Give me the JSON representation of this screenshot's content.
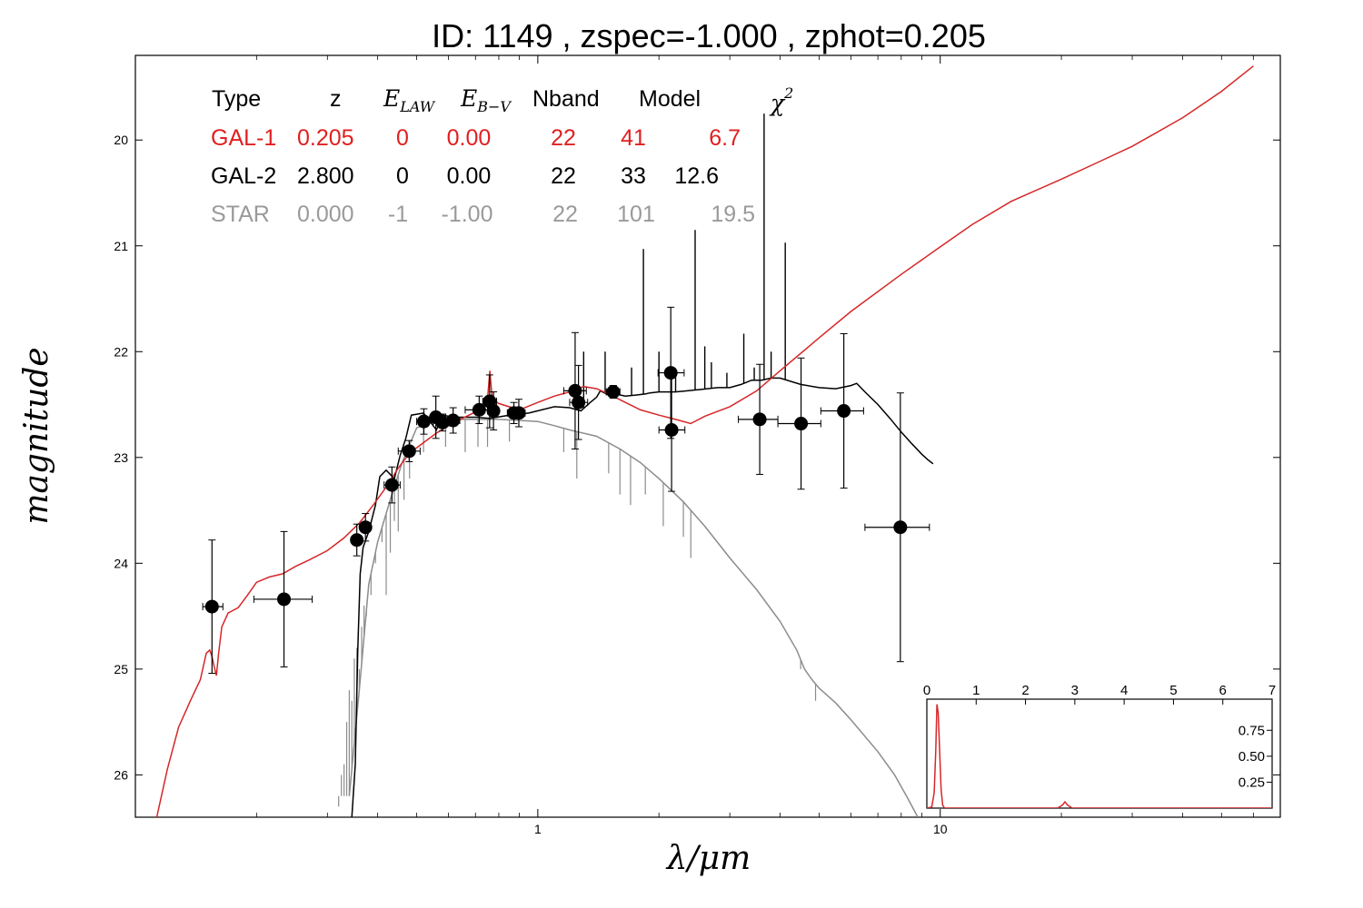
{
  "title": "ID:  1149  , zspec=-1.000 , zphot=0.205",
  "chart_data": {
    "type": "scatter",
    "xlabel": "λ/μm",
    "ylabel": "magnitude",
    "x_scale": "log",
    "xlim": [
      0.1,
      70
    ],
    "ylim": [
      26.4,
      19.2
    ],
    "x_ticks": [
      1,
      10
    ],
    "x_tick_labels": [
      "1",
      "10"
    ],
    "y_ticks": [
      20,
      21,
      22,
      23,
      24,
      25,
      26
    ],
    "y_tick_labels": [
      "20",
      "21",
      "22",
      "23",
      "24",
      "25",
      "26"
    ],
    "colors": {
      "gal1": "#d62728",
      "gal2": "#000000",
      "star": "#8c8c8c"
    },
    "fit_table": {
      "headers": {
        "type": "Type",
        "z": "z",
        "elaw_main": "E",
        "elaw_sub": "LAW",
        "ebv_main": "E",
        "ebv_sub": "B−V",
        "nband": "Nband",
        "model": "Model",
        "chi_main": "χ",
        "chi_sup": "2"
      },
      "rows": [
        {
          "type": "GAL-1",
          "z": "0.205",
          "elaw": "0",
          "ebv": "0.00",
          "nband": "22",
          "model": "41",
          "chi2": "6.7",
          "color": "#e02020"
        },
        {
          "type": "GAL-2",
          "z": "2.800",
          "elaw": "0",
          "ebv": "0.00",
          "nband": "22",
          "model": "33",
          "chi2": "12.6",
          "color": "#000000"
        },
        {
          "type": "STAR",
          "z": "0.000",
          "elaw": "-1",
          "ebv": "-1.00",
          "nband": "22",
          "model": "101",
          "chi2": "19.5",
          "color": "#9a9a9a"
        }
      ]
    },
    "photometry": [
      {
        "x": 0.155,
        "y": 24.41,
        "xerr": [
          0.147,
          0.165
        ],
        "yerr": 0.63
      },
      {
        "x": 0.234,
        "y": 24.34,
        "xerr": [
          0.197,
          0.275
        ],
        "yerr": 0.64
      },
      {
        "x": 0.355,
        "y": 23.78,
        "xerr": [
          0.345,
          0.365
        ],
        "yerr": 0.15
      },
      {
        "x": 0.373,
        "y": 23.66,
        "xerr": [
          0.363,
          0.383
        ],
        "yerr": 0.13
      },
      {
        "x": 0.434,
        "y": 23.26,
        "xerr": [
          0.415,
          0.455
        ],
        "yerr": 0.17
      },
      {
        "x": 0.479,
        "y": 22.94,
        "xerr": [
          0.45,
          0.51
        ],
        "yerr": 0.1
      },
      {
        "x": 0.521,
        "y": 22.66,
        "xerr": [
          0.5,
          0.55
        ],
        "yerr": 0.12
      },
      {
        "x": 0.558,
        "y": 22.62,
        "xerr": [
          0.52,
          0.59
        ],
        "yerr": 0.2
      },
      {
        "x": 0.58,
        "y": 22.67,
        "xerr": [
          0.56,
          0.6
        ],
        "yerr": 0.08
      },
      {
        "x": 0.616,
        "y": 22.65,
        "xerr": [
          0.59,
          0.64
        ],
        "yerr": 0.12
      },
      {
        "x": 0.715,
        "y": 22.55,
        "xerr": [
          0.66,
          0.77
        ],
        "yerr": 0.13
      },
      {
        "x": 0.759,
        "y": 22.47,
        "xerr": [
          0.73,
          0.79
        ],
        "yerr": 0.25
      },
      {
        "x": 0.776,
        "y": 22.56,
        "xerr": [
          0.75,
          0.8
        ],
        "yerr": 0.18
      },
      {
        "x": 0.872,
        "y": 22.58,
        "xerr": [
          0.84,
          0.9
        ],
        "yerr": 0.1
      },
      {
        "x": 0.897,
        "y": 22.58,
        "xerr": [
          0.87,
          0.93
        ],
        "yerr": 0.13
      },
      {
        "x": 1.238,
        "y": 22.37,
        "xerr": [
          1.16,
          1.32
        ],
        "yerr": 0.55
      },
      {
        "x": 1.262,
        "y": 22.48,
        "xerr": [
          1.2,
          1.33
        ],
        "yerr": 0.35
      },
      {
        "x": 1.54,
        "y": 22.38,
        "xerr": [
          1.48,
          1.6
        ],
        "yerr": 0.06
      },
      {
        "x": 2.14,
        "y": 22.2,
        "xerr": [
          1.99,
          2.31
        ],
        "yerr": 0.62
      },
      {
        "x": 2.15,
        "y": 22.74,
        "xerr": [
          2.0,
          2.32
        ],
        "yerr": 0.58
      },
      {
        "x": 3.56,
        "y": 22.64,
        "xerr": [
          3.15,
          3.95
        ],
        "yerr": 0.52
      },
      {
        "x": 4.51,
        "y": 22.68,
        "xerr": [
          3.95,
          5.05
        ],
        "yerr": 0.62
      },
      {
        "x": 5.76,
        "y": 22.56,
        "xerr": [
          5.05,
          6.45
        ],
        "yerr": 0.73
      },
      {
        "x": 7.96,
        "y": 23.66,
        "xerr": [
          6.5,
          9.4
        ],
        "yerr": 1.27
      }
    ],
    "gal1_curve": [
      [
        0.113,
        26.4
      ],
      [
        0.12,
        25.95
      ],
      [
        0.128,
        25.55
      ],
      [
        0.137,
        25.3
      ],
      [
        0.145,
        25.1
      ],
      [
        0.15,
        24.85
      ],
      [
        0.153,
        24.82
      ],
      [
        0.155,
        24.88
      ],
      [
        0.157,
        24.98
      ],
      [
        0.159,
        25.06
      ],
      [
        0.161,
        24.85
      ],
      [
        0.164,
        24.6
      ],
      [
        0.17,
        24.47
      ],
      [
        0.18,
        24.42
      ],
      [
        0.19,
        24.3
      ],
      [
        0.2,
        24.18
      ],
      [
        0.215,
        24.13
      ],
      [
        0.232,
        24.1
      ],
      [
        0.25,
        24.03
      ],
      [
        0.27,
        23.97
      ],
      [
        0.3,
        23.88
      ],
      [
        0.33,
        23.76
      ],
      [
        0.36,
        23.62
      ],
      [
        0.39,
        23.45
      ],
      [
        0.42,
        23.28
      ],
      [
        0.45,
        23.1
      ],
      [
        0.48,
        22.96
      ],
      [
        0.52,
        22.86
      ],
      [
        0.56,
        22.77
      ],
      [
        0.6,
        22.7
      ],
      [
        0.65,
        22.63
      ],
      [
        0.7,
        22.57
      ],
      [
        0.75,
        22.45
      ],
      [
        0.76,
        22.18
      ],
      [
        0.77,
        22.44
      ],
      [
        0.8,
        22.49
      ],
      [
        0.9,
        22.55
      ],
      [
        1.0,
        22.48
      ],
      [
        1.1,
        22.42
      ],
      [
        1.2,
        22.38
      ],
      [
        1.3,
        22.33
      ],
      [
        1.4,
        22.35
      ],
      [
        1.5,
        22.4
      ],
      [
        1.65,
        22.48
      ],
      [
        1.8,
        22.55
      ],
      [
        2.0,
        22.6
      ],
      [
        2.2,
        22.64
      ],
      [
        2.4,
        22.68
      ],
      [
        2.6,
        22.61
      ],
      [
        3.0,
        22.52
      ],
      [
        3.5,
        22.37
      ],
      [
        4.0,
        22.18
      ],
      [
        5.0,
        21.87
      ],
      [
        6.0,
        21.62
      ],
      [
        8.0,
        21.27
      ],
      [
        10.0,
        21.01
      ],
      [
        12.0,
        20.8
      ],
      [
        15.0,
        20.58
      ],
      [
        20.0,
        20.37
      ],
      [
        25.0,
        20.2
      ],
      [
        30.0,
        20.06
      ],
      [
        40.0,
        19.79
      ],
      [
        50.0,
        19.54
      ],
      [
        60.0,
        19.3
      ]
    ],
    "gal2_curve": [
      [
        0.345,
        26.4
      ],
      [
        0.352,
        25.9
      ],
      [
        0.357,
        24.8
      ],
      [
        0.362,
        24.1
      ],
      [
        0.368,
        23.85
      ],
      [
        0.38,
        23.7
      ],
      [
        0.395,
        23.45
      ],
      [
        0.405,
        23.18
      ],
      [
        0.42,
        23.12
      ],
      [
        0.44,
        23.2
      ],
      [
        0.455,
        22.98
      ],
      [
        0.47,
        22.82
      ],
      [
        0.485,
        22.6
      ],
      [
        0.52,
        22.58
      ],
      [
        0.56,
        22.74
      ],
      [
        0.58,
        22.6
      ],
      [
        0.62,
        22.62
      ],
      [
        0.7,
        22.62
      ],
      [
        0.76,
        22.63
      ],
      [
        0.85,
        22.6
      ],
      [
        0.95,
        22.58
      ],
      [
        1.1,
        22.52
      ],
      [
        1.2,
        22.53
      ],
      [
        1.28,
        22.56
      ],
      [
        1.35,
        22.48
      ],
      [
        1.4,
        22.43
      ],
      [
        1.43,
        22.37
      ],
      [
        1.5,
        22.41
      ],
      [
        1.56,
        22.4
      ],
      [
        1.65,
        22.42
      ],
      [
        1.75,
        22.41
      ],
      [
        1.85,
        22.4
      ],
      [
        1.9,
        22.39
      ],
      [
        2.0,
        22.38
      ],
      [
        2.2,
        22.38
      ],
      [
        2.5,
        22.36
      ],
      [
        2.8,
        22.34
      ],
      [
        3.0,
        22.34
      ],
      [
        3.2,
        22.31
      ],
      [
        3.4,
        22.27
      ],
      [
        3.6,
        22.27
      ],
      [
        3.8,
        22.25
      ],
      [
        4.0,
        22.25
      ],
      [
        4.5,
        22.31
      ],
      [
        5.0,
        22.34
      ],
      [
        5.5,
        22.35
      ],
      [
        6.0,
        22.32
      ],
      [
        6.2,
        22.3
      ],
      [
        6.5,
        22.38
      ],
      [
        7.0,
        22.5
      ],
      [
        7.5,
        22.63
      ],
      [
        8.0,
        22.76
      ],
      [
        8.5,
        22.87
      ],
      [
        9.0,
        22.97
      ],
      [
        9.3,
        23.02
      ],
      [
        9.6,
        23.06
      ]
    ],
    "gal2_emission_lines": [
      {
        "x": 1.3,
        "y": 22.0
      },
      {
        "x": 1.47,
        "y": 22.0
      },
      {
        "x": 1.71,
        "y": 22.15
      },
      {
        "x": 1.83,
        "y": 21.03
      },
      {
        "x": 2.0,
        "y": 22.0
      },
      {
        "x": 2.2,
        "y": 22.2
      },
      {
        "x": 2.46,
        "y": 20.85
      },
      {
        "x": 2.6,
        "y": 21.95
      },
      {
        "x": 2.7,
        "y": 22.1
      },
      {
        "x": 2.95,
        "y": 22.2
      },
      {
        "x": 3.25,
        "y": 21.83
      },
      {
        "x": 3.45,
        "y": 22.15
      },
      {
        "x": 3.65,
        "y": 19.75
      },
      {
        "x": 3.8,
        "y": 22.0
      },
      {
        "x": 4.12,
        "y": 20.97
      }
    ],
    "star_curve": [
      [
        0.34,
        26.2
      ],
      [
        0.36,
        25.2
      ],
      [
        0.38,
        24.2
      ],
      [
        0.4,
        23.8
      ],
      [
        0.43,
        23.4
      ],
      [
        0.46,
        23.05
      ],
      [
        0.48,
        22.88
      ],
      [
        0.5,
        22.72
      ],
      [
        0.55,
        22.66
      ],
      [
        0.6,
        22.64
      ],
      [
        0.7,
        22.64
      ],
      [
        0.8,
        22.64
      ],
      [
        0.9,
        22.65
      ],
      [
        1.0,
        22.66
      ],
      [
        1.1,
        22.7
      ],
      [
        1.2,
        22.74
      ],
      [
        1.4,
        22.8
      ],
      [
        1.6,
        22.92
      ],
      [
        1.8,
        23.05
      ],
      [
        2.0,
        23.2
      ],
      [
        2.3,
        23.42
      ],
      [
        2.6,
        23.65
      ],
      [
        3.0,
        23.95
      ],
      [
        3.5,
        24.25
      ],
      [
        4.0,
        24.55
      ],
      [
        4.4,
        24.82
      ],
      [
        4.6,
        25.0
      ],
      [
        4.8,
        25.1
      ],
      [
        5.0,
        25.18
      ],
      [
        5.5,
        25.32
      ],
      [
        6.0,
        25.48
      ],
      [
        7.0,
        25.78
      ],
      [
        7.7,
        26.0
      ],
      [
        8.3,
        26.22
      ],
      [
        8.8,
        26.4
      ]
    ],
    "star_absorption_lines": [
      {
        "x": 0.3,
        "y": 26.2
      },
      {
        "x": 0.32,
        "y": 26.3
      },
      {
        "x": 0.325,
        "y": 26.0
      },
      {
        "x": 0.33,
        "y": 25.9
      },
      {
        "x": 0.335,
        "y": 25.5
      },
      {
        "x": 0.34,
        "y": 25.2
      },
      {
        "x": 0.345,
        "y": 25.3
      },
      {
        "x": 0.35,
        "y": 24.9
      },
      {
        "x": 0.355,
        "y": 24.8
      },
      {
        "x": 0.36,
        "y": 25.0
      },
      {
        "x": 0.365,
        "y": 24.6
      },
      {
        "x": 0.37,
        "y": 24.4
      },
      {
        "x": 0.375,
        "y": 24.5
      },
      {
        "x": 0.385,
        "y": 24.3
      },
      {
        "x": 0.395,
        "y": 24.0
      },
      {
        "x": 0.41,
        "y": 23.8
      },
      {
        "x": 0.42,
        "y": 24.3
      },
      {
        "x": 0.43,
        "y": 23.9
      },
      {
        "x": 0.44,
        "y": 23.6
      },
      {
        "x": 0.45,
        "y": 23.7
      },
      {
        "x": 0.465,
        "y": 23.4
      },
      {
        "x": 0.48,
        "y": 23.2
      },
      {
        "x": 0.52,
        "y": 22.95
      },
      {
        "x": 0.59,
        "y": 22.9
      },
      {
        "x": 0.66,
        "y": 22.95
      },
      {
        "x": 0.71,
        "y": 22.9
      },
      {
        "x": 0.75,
        "y": 22.9
      },
      {
        "x": 0.85,
        "y": 22.85
      },
      {
        "x": 1.16,
        "y": 22.95
      },
      {
        "x": 1.25,
        "y": 23.2
      },
      {
        "x": 1.5,
        "y": 23.15
      },
      {
        "x": 1.6,
        "y": 23.35
      },
      {
        "x": 1.7,
        "y": 23.45
      },
      {
        "x": 1.85,
        "y": 23.35
      },
      {
        "x": 2.05,
        "y": 23.65
      },
      {
        "x": 2.3,
        "y": 23.75
      },
      {
        "x": 2.4,
        "y": 23.95
      },
      {
        "x": 4.5,
        "y": 25.0
      },
      {
        "x": 4.9,
        "y": 25.3
      }
    ],
    "inset": {
      "type": "line",
      "xlim": [
        0,
        7
      ],
      "ylim": [
        0,
        1.05
      ],
      "x_ticks": [
        0,
        1,
        2,
        3,
        4,
        5,
        6,
        7
      ],
      "x_tick_labels": [
        "0",
        "1",
        "2",
        "3",
        "4",
        "5",
        "6",
        "7"
      ],
      "y_ticks": [
        0.25,
        0.5,
        0.75
      ],
      "y_tick_labels": [
        "0.25",
        "0.50",
        "0.75"
      ],
      "pdz": [
        [
          0.0,
          0.0
        ],
        [
          0.1,
          0.01
        ],
        [
          0.15,
          0.15
        ],
        [
          0.18,
          0.55
        ],
        [
          0.205,
          1.0
        ],
        [
          0.23,
          0.92
        ],
        [
          0.26,
          0.55
        ],
        [
          0.29,
          0.18
        ],
        [
          0.32,
          0.03
        ],
        [
          0.36,
          0.0
        ],
        [
          2.65,
          0.0
        ],
        [
          2.75,
          0.03
        ],
        [
          2.8,
          0.06
        ],
        [
          2.85,
          0.03
        ],
        [
          2.95,
          0.0
        ],
        [
          7.0,
          0.0
        ]
      ]
    }
  }
}
